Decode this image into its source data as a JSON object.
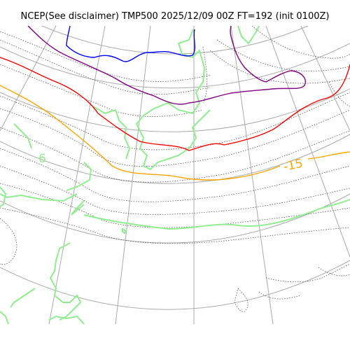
{
  "title": "NCEP(See disclaimer) TMP500 2025/12/09 00Z FT=192 (init 0100Z)",
  "labels": {
    "minus15": "-15",
    "minus6": "6"
  },
  "colors": {
    "coastline": "#90ee90",
    "graticule": "#aaaaaa",
    "isotherm_minor": "#555555",
    "isotherm_minus15": "#ffa500",
    "isotherm_red": "#ff0000",
    "isotherm_purple": "#800080",
    "isotherm_blue": "#0000ff"
  }
}
